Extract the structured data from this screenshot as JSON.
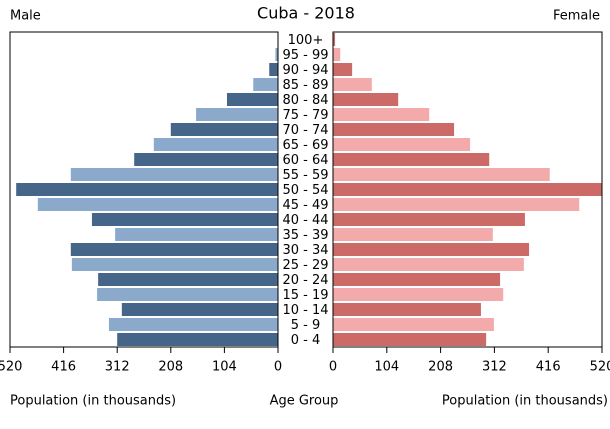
{
  "chart_data": {
    "type": "population-pyramid",
    "title": "Cuba - 2018",
    "categories": [
      "100+",
      "95 - 99",
      "90 - 94",
      "85 - 89",
      "80 - 84",
      "75 - 79",
      "70 - 74",
      "65 - 69",
      "60 - 64",
      "55 - 59",
      "50 - 54",
      "45 - 49",
      "40 - 44",
      "35 - 39",
      "30 - 34",
      "25 - 29",
      "20 - 24",
      "15 - 19",
      "10 - 14",
      "5 - 9",
      "0 - 4"
    ],
    "series": [
      {
        "name": "Male",
        "colors": [
          "#456589",
          "#8baacb"
        ],
        "values": [
          1,
          5,
          17,
          48,
          99,
          159,
          208,
          241,
          279,
          402,
          508,
          466,
          361,
          316,
          402,
          400,
          349,
          351,
          303,
          328,
          312
        ]
      },
      {
        "name": "Female",
        "colors": [
          "#cc6a68",
          "#f2abaa"
        ],
        "values": [
          4,
          14,
          37,
          75,
          126,
          186,
          234,
          265,
          302,
          419,
          520,
          476,
          371,
          309,
          379,
          369,
          323,
          329,
          286,
          311,
          296
        ]
      }
    ],
    "xlim": [
      0,
      520
    ],
    "xticks": [
      0,
      104,
      208,
      312,
      416,
      520
    ],
    "x_label_left": "Population (in thousands)",
    "x_label_center": "Age Group",
    "x_label_right": "Population (in thousands)"
  }
}
